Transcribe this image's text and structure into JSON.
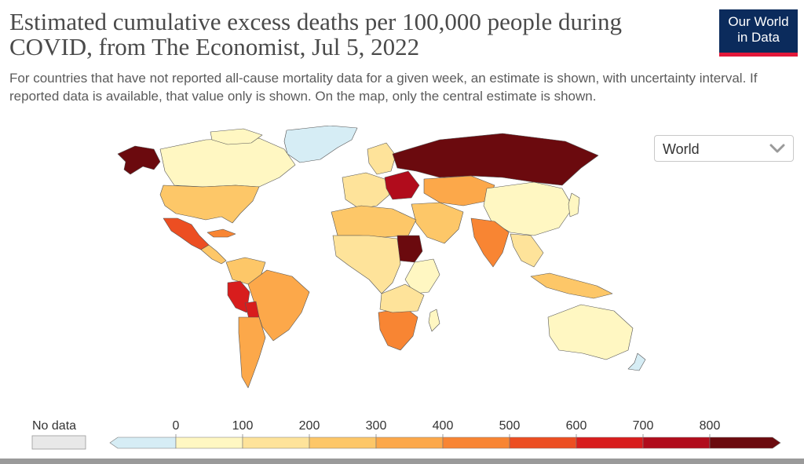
{
  "header": {
    "title": "Estimated cumulative excess deaths per 100,000 people during COVID, from The Economist, Jul 5, 2022",
    "subtitle": "For countries that have not reported all-cause mortality data for a given week, an estimate is shown, with uncertainty interval. If reported data is available, that value only is shown. On the map, only the central estimate is shown.",
    "logo": {
      "line1": "Our World",
      "line2": "in Data",
      "bg": "#0b2b5c",
      "accent": "#e3183a"
    }
  },
  "entity_select": {
    "value": "World",
    "icon": "chevron-down-icon"
  },
  "legend": {
    "no_data_label": "No data",
    "no_data_color": "#e8e8e8",
    "ticks": [
      "0",
      "100",
      "200",
      "300",
      "400",
      "500",
      "600",
      "700",
      "800"
    ],
    "bins": [
      {
        "color": "#d6edf5"
      },
      {
        "color": "#fff7c2"
      },
      {
        "color": "#fee39a"
      },
      {
        "color": "#fdc768"
      },
      {
        "color": "#fca84a"
      },
      {
        "color": "#f88533"
      },
      {
        "color": "#ec4e22"
      },
      {
        "color": "#d81d1d"
      },
      {
        "color": "#b10c1c"
      },
      {
        "color": "#6b0a0e"
      }
    ]
  }
}
